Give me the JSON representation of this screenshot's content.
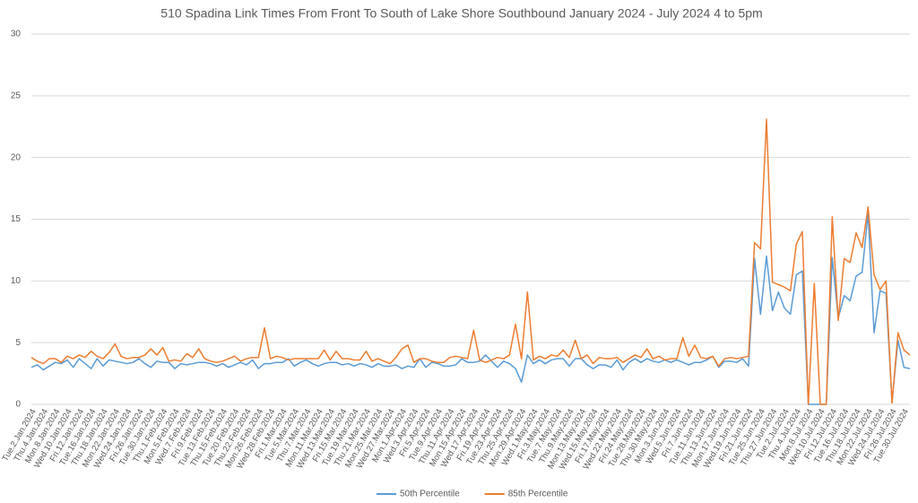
{
  "chart_data": {
    "type": "line",
    "title": "510 Spadina Link Times From Front To South of Lake Shore Southbound January 2024 - July 2024 4 to 5pm",
    "categories": [
      "Tue.2.Jan.2024",
      null,
      "Thu.4.Jan.2024",
      null,
      "Mon.8.Jan.2024",
      null,
      "Wed.10.Jan.2024",
      null,
      "Fri.12.Jan.2024",
      null,
      "Tue.16.Jan.2024",
      null,
      "Thu.18.Jan.2024",
      null,
      "Mon.22.Jan.2024",
      null,
      "Wed.24.Jan.2024",
      null,
      "Fri.26.Jan.2024",
      null,
      "Tue.30.Jan.2024",
      null,
      "Thu.1.Feb.2024",
      null,
      "Mon.5.Feb.2024",
      null,
      "Wed.7.Feb.2024",
      null,
      "Fri.9.Feb.2024",
      null,
      "Tue.13.Feb.2024",
      null,
      "Thu.15.Feb.2024",
      null,
      "Tue.20.Feb.2024",
      null,
      "Thu.22.Feb.2024",
      null,
      "Mon.26.Feb.2024",
      null,
      "Wed.28.Feb.2024",
      null,
      "Fri.1.Mar.2024",
      null,
      "Tue.5.Mar.2024",
      null,
      "Thu.7.Mar.2024",
      null,
      "Mon.11.Mar.2024",
      null,
      "Wed.13.Mar.2024",
      null,
      "Fri.15.Mar.2024",
      null,
      "Tue.19.Mar.2024",
      null,
      "Thu.21.Mar.2024",
      null,
      "Mon.25.Mar.2024",
      null,
      "Wed.27.Mar.2024",
      null,
      "Mon.1.Apr.2024",
      null,
      "Wed.3.Apr.2024",
      null,
      "Fri.5.Apr.2024",
      null,
      "Tue.9.Apr.2024",
      null,
      "Thu.11.Apr.2024",
      null,
      "Mon.15.Apr.2024",
      null,
      "Wed.17.Apr.2024",
      null,
      "Fri.19.Apr.2024",
      null,
      "Tue.23.Apr.2024",
      null,
      "Thu.25.Apr.2024",
      null,
      "Mon.29.Apr.2024",
      null,
      "Wed.1.May.2024",
      null,
      "Fri.3.May.2024",
      null,
      "Tue.7.May.2024",
      null,
      "Thu.9.May.2024",
      null,
      "Mon.13.May.2024",
      null,
      "Wed.15.May.2024",
      null,
      "Fri.17.May.2024",
      null,
      "Wed.22.May.2024",
      null,
      "Fri.24.May.2024",
      null,
      "Tue.28.May.2024",
      null,
      "Thu.30.May.2024",
      null,
      "Mon.3.Jun.2024",
      null,
      "Wed.5.Jun.2024",
      null,
      "Fri.7.Jun.2024",
      null,
      "Tue.11.Jun.2024",
      null,
      "Thu.13.Jun.2024",
      null,
      "Mon.17.Jun.2024",
      null,
      "Wed.19.Jun.2024",
      null,
      "Fri.21.Jun.2024",
      null,
      "Tue.25.Jun.2024",
      null,
      "Thu.27.Jun.2024",
      null,
      "Tue.2.Jul.2024",
      null,
      "Thu.4.Jul.2024",
      null,
      "Mon.8.Jul.2024",
      null,
      "Wed.10.Jul.2024",
      null,
      "Fri.12.Jul.2024",
      null,
      "Tue.16.Jul.2024",
      null,
      "Thu.18.Jul.2024",
      null,
      "Mon.22.Jul.2024",
      null,
      "Wed.24.Jul.2024",
      null,
      "Fri.26.Jul.2024",
      null,
      "Tue.30.Jul.2024",
      null
    ],
    "series": [
      {
        "name": "50th Percentile",
        "color": "#5b9bd5",
        "values": [
          3.0,
          3.2,
          2.8,
          3.1,
          3.4,
          3.3,
          3.6,
          3.0,
          3.7,
          3.3,
          2.9,
          3.7,
          3.1,
          3.6,
          3.5,
          3.4,
          3.3,
          3.4,
          3.7,
          3.3,
          3.0,
          3.5,
          3.4,
          3.4,
          2.9,
          3.3,
          3.2,
          3.3,
          3.4,
          3.4,
          3.3,
          3.1,
          3.3,
          3.0,
          3.2,
          3.4,
          3.2,
          3.6,
          2.9,
          3.3,
          3.3,
          3.4,
          3.4,
          3.7,
          3.1,
          3.4,
          3.6,
          3.3,
          3.1,
          3.3,
          3.4,
          3.4,
          3.2,
          3.3,
          3.1,
          3.3,
          3.2,
          3.0,
          3.3,
          3.1,
          3.1,
          3.2,
          2.9,
          3.1,
          3.0,
          3.7,
          3.0,
          3.4,
          3.3,
          3.1,
          3.1,
          3.2,
          3.7,
          3.4,
          3.4,
          3.5,
          4.0,
          3.5,
          3.0,
          3.5,
          3.3,
          2.9,
          1.8,
          4.0,
          3.3,
          3.6,
          3.3,
          3.6,
          3.7,
          3.7,
          3.1,
          3.7,
          3.7,
          3.2,
          2.9,
          3.2,
          3.2,
          3.0,
          3.6,
          2.8,
          3.4,
          3.7,
          3.4,
          3.7,
          3.5,
          3.4,
          3.6,
          3.4,
          3.6,
          3.4,
          3.2,
          3.4,
          3.4,
          3.6,
          3.9,
          3.0,
          3.5,
          3.5,
          3.4,
          3.7,
          3.1,
          11.8,
          7.3,
          12.0,
          7.6,
          9.1,
          7.8,
          7.3,
          10.5,
          10.8,
          0,
          0,
          0,
          0,
          11.9,
          7.0,
          8.8,
          8.4,
          10.4,
          10.7,
          15.5,
          5.8,
          9.2,
          9.0,
          0.2,
          5.2,
          3.0,
          2.9
        ]
      },
      {
        "name": "85th Percentile",
        "color": "#ed7d31",
        "values": [
          3.8,
          3.5,
          3.3,
          3.7,
          3.7,
          3.4,
          3.9,
          3.7,
          4.0,
          3.8,
          4.3,
          3.9,
          3.7,
          4.2,
          4.9,
          3.9,
          3.7,
          3.8,
          3.8,
          4.0,
          4.5,
          4.0,
          4.6,
          3.5,
          3.6,
          3.5,
          4.1,
          3.8,
          4.5,
          3.7,
          3.5,
          3.4,
          3.5,
          3.7,
          3.9,
          3.5,
          3.7,
          3.8,
          3.8,
          6.2,
          3.7,
          3.9,
          3.8,
          3.6,
          3.7,
          3.7,
          3.7,
          3.7,
          3.7,
          4.4,
          3.6,
          4.3,
          3.7,
          3.7,
          3.6,
          3.6,
          4.3,
          3.5,
          3.7,
          3.5,
          3.3,
          3.8,
          4.5,
          4.8,
          3.4,
          3.7,
          3.7,
          3.5,
          3.4,
          3.4,
          3.8,
          3.9,
          3.8,
          3.7,
          6.0,
          3.6,
          3.4,
          3.6,
          3.8,
          3.7,
          4.0,
          6.5,
          3.7,
          9.1,
          3.6,
          3.9,
          3.7,
          4.0,
          3.9,
          4.4,
          3.8,
          5.2,
          3.7,
          4.0,
          3.3,
          3.8,
          3.7,
          3.7,
          3.8,
          3.4,
          3.7,
          4.0,
          3.8,
          4.5,
          3.7,
          3.9,
          3.6,
          3.7,
          3.7,
          5.4,
          3.9,
          4.8,
          3.8,
          3.7,
          3.9,
          3.1,
          3.7,
          3.8,
          3.7,
          3.8,
          3.9,
          13.1,
          12.6,
          23.1,
          9.9,
          9.7,
          9.5,
          9.2,
          13.0,
          14.0,
          0,
          9.8,
          0,
          0,
          15.2,
          6.8,
          11.8,
          11.5,
          13.9,
          12.7,
          16.0,
          10.5,
          9.3,
          10.0,
          0.1,
          5.8,
          4.4,
          4.0
        ]
      }
    ],
    "ylim": [
      0,
      30
    ],
    "yticks": [
      0,
      5,
      10,
      15,
      20,
      25,
      30
    ],
    "grid": true,
    "legend": "bottom"
  }
}
